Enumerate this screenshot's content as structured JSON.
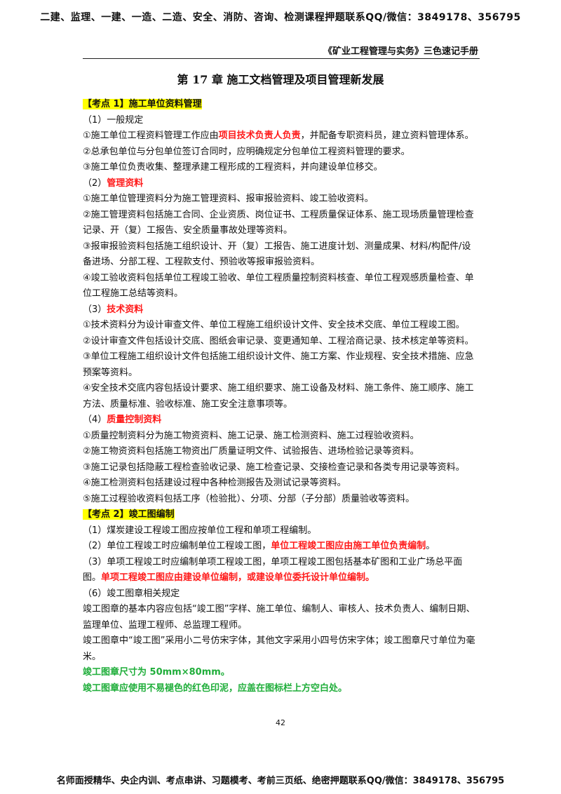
{
  "header": {
    "banner": "二建、监理、一建、一造、二造、安全、消防、咨询、检测课程押题联系QQ/微信：3849178、356795",
    "book_title": "《矿业工程管理与实务》三色速记手册"
  },
  "chapter_title": "第 17 章   施工文档管理及项目管理新发展",
  "sections": {
    "s1": {
      "title": "【考点 1】施工单位资料管理",
      "sub1": "（1）一般规定",
      "p1_pre": "①施工单位工程资料管理工作应由",
      "p1_red": "项目技术负责人负责",
      "p1_post": "，并配备专职资料员，建立资料管理体系。",
      "p2": "②总承包单位与分包单位签订合同时，应明确规定分包单位工程资料管理的要求。",
      "p3": "③施工单位负责收集、整理承建工程形成的工程资料，并向建设单位移交。",
      "sub2_pre": "（2）",
      "sub2_red": "管理资料",
      "p4": "①施工单位管理资料分为施工管理资料、报审报验资料、竣工验收资料。",
      "p5": "②施工管理资料包括施工合同、企业资质、岗位证书、工程质量保证体系、施工现场质量管理检查记录、开（复）工报告、安全质量事故处理等资料。",
      "p6": "③报审报验资料包括施工组织设计、开（复）工报告、施工进度计划、测量成果、材料/构配件/设备进场、分部工程、工程款支付、预验收等报审报验资料。",
      "p7": "④竣工验收资料包括单位工程竣工验收、单位工程质量控制资料核查、单位工程观感质量检查、单位工程施工总结等资料。",
      "sub3_pre": "（3）",
      "sub3_red": "技术资料",
      "p8": "①技术资料分为设计审查文件、单位工程施工组织设计文件、安全技术交底、单位工程竣工图。",
      "p9": "②设计审查文件包括设计交底、图纸会审记录、变更通知单、工程洽商记录、技术核定单等资料。",
      "p10": "③单位工程施工组织设计文件包括施工组织设计文件、施工方案、作业规程、安全技术措施、应急预案等资料。",
      "p11": "④安全技术交底内容包括设计要求、施工组织要求、施工设备及材料、施工条件、施工顺序、施工方法、质量标准、验收标准、施工安全注意事项等。",
      "sub4_pre": "（4）",
      "sub4_red": "质量控制资料",
      "p12": "①质量控制资料分为施工物资资料、施工记录、施工检测资料、施工过程验收资料。",
      "p13": "②施工物资资料包括施工物资出厂质量证明文件、试验报告、进场检验记录等资料。",
      "p14": "③施工记录包括隐蔽工程检查验收记录、施工检查记录、交接检查记录和各类专用记录等资料。",
      "p15": "④施工检测资料包括建设过程中各种检测报告及测试记录等资料。",
      "p16": "⑤施工过程验收资料包括工序（检验批）、分项、分部（子分部）质量验收等资料。"
    },
    "s2": {
      "title": "【考点 2】竣工图编制",
      "p1": "（1）煤炭建设工程竣工图应按单位工程和单项工程编制。",
      "p2_pre": "（2）单位工程竣工时应编制单位工程竣工图，",
      "p2_red": "单位工程竣工图应由施工单位负责编制",
      "p2_post": "。",
      "p3_pre": "（3）单项工程竣工时应编制单项工程竣工图，单项工程竣工图包括基本矿图和工业广场总平面图。",
      "p3_red": "单项工程竣工图应由建设单位编制，或建设单位委托设计单位编制。",
      "p4": "（6）竣工图章相关规定",
      "p5": "竣工图章的基本内容应包括“竣工图”字样、施工单位、编制人、审核人、技术负责人、编制日期、监理单位、监理工程师、总监理工程师。",
      "p6": "竣工图章中“竣工图”采用小二号仿宋字体，其他文字采用小四号仿宋字体；竣工图章尺寸单位为毫米。",
      "p7_green": "竣工图章尺寸为 50mm×80mm。",
      "p8_green": "竣工图章应使用不易褪色的红色印泥，应盖在图标栏上方空白处。"
    }
  },
  "page_number": "42",
  "footer": {
    "banner": "名师面授精华、央企内训、考点串讲、习题模考、考前三页纸、绝密押题联系QQ/微信：3849178、356795"
  },
  "colors": {
    "highlight": "#ffff00",
    "red_text": "#ff1a1a",
    "green_text": "#1fae3a"
  }
}
